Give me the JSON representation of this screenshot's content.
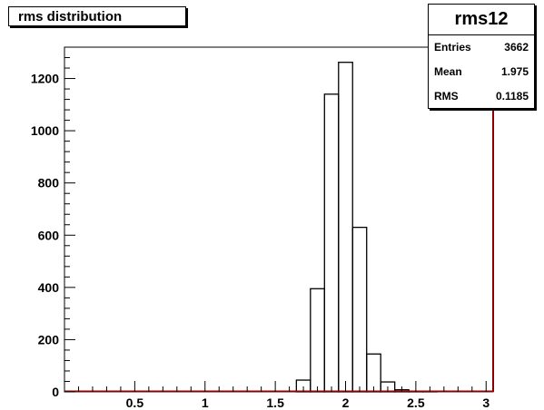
{
  "title": "rms distribution",
  "stats": {
    "name": "rms12",
    "entries_label": "Entries",
    "entries_value": "3662",
    "mean_label": "Mean",
    "mean_value": "1.975",
    "rms_label": "RMS",
    "rms_value": "0.1185"
  },
  "chart_data": {
    "type": "bar",
    "title": "rms distribution",
    "xlabel": "",
    "ylabel": "",
    "xlim": [
      0,
      3.05
    ],
    "ylim": [
      0,
      1320
    ],
    "x_ticks": [
      0.5,
      1,
      1.5,
      2,
      2.5,
      3
    ],
    "x_tick_labels": [
      "0.5",
      "1",
      "1.5",
      "2",
      "2.5",
      "3"
    ],
    "y_ticks": [
      0,
      200,
      400,
      600,
      800,
      1000,
      1200
    ],
    "y_tick_labels": [
      "0",
      "200",
      "400",
      "600",
      "800",
      "1000",
      "1200"
    ],
    "bin_width": 0.1,
    "bins": [
      {
        "x0": 1.65,
        "x1": 1.75,
        "value": 45
      },
      {
        "x0": 1.75,
        "x1": 1.85,
        "value": 395
      },
      {
        "x0": 1.85,
        "x1": 1.95,
        "value": 1140
      },
      {
        "x0": 1.95,
        "x1": 2.05,
        "value": 1262
      },
      {
        "x0": 2.05,
        "x1": 2.15,
        "value": 630
      },
      {
        "x0": 2.15,
        "x1": 2.25,
        "value": 145
      },
      {
        "x0": 2.25,
        "x1": 2.35,
        "value": 38
      },
      {
        "x0": 2.35,
        "x1": 2.45,
        "value": 8
      },
      {
        "x0": 2.45,
        "x1": 2.55,
        "value": 2
      },
      {
        "x0": 2.55,
        "x1": 2.65,
        "value": 1
      }
    ],
    "grid": false,
    "colors": {
      "line": "#000000",
      "baseline": "#8b0000"
    }
  }
}
